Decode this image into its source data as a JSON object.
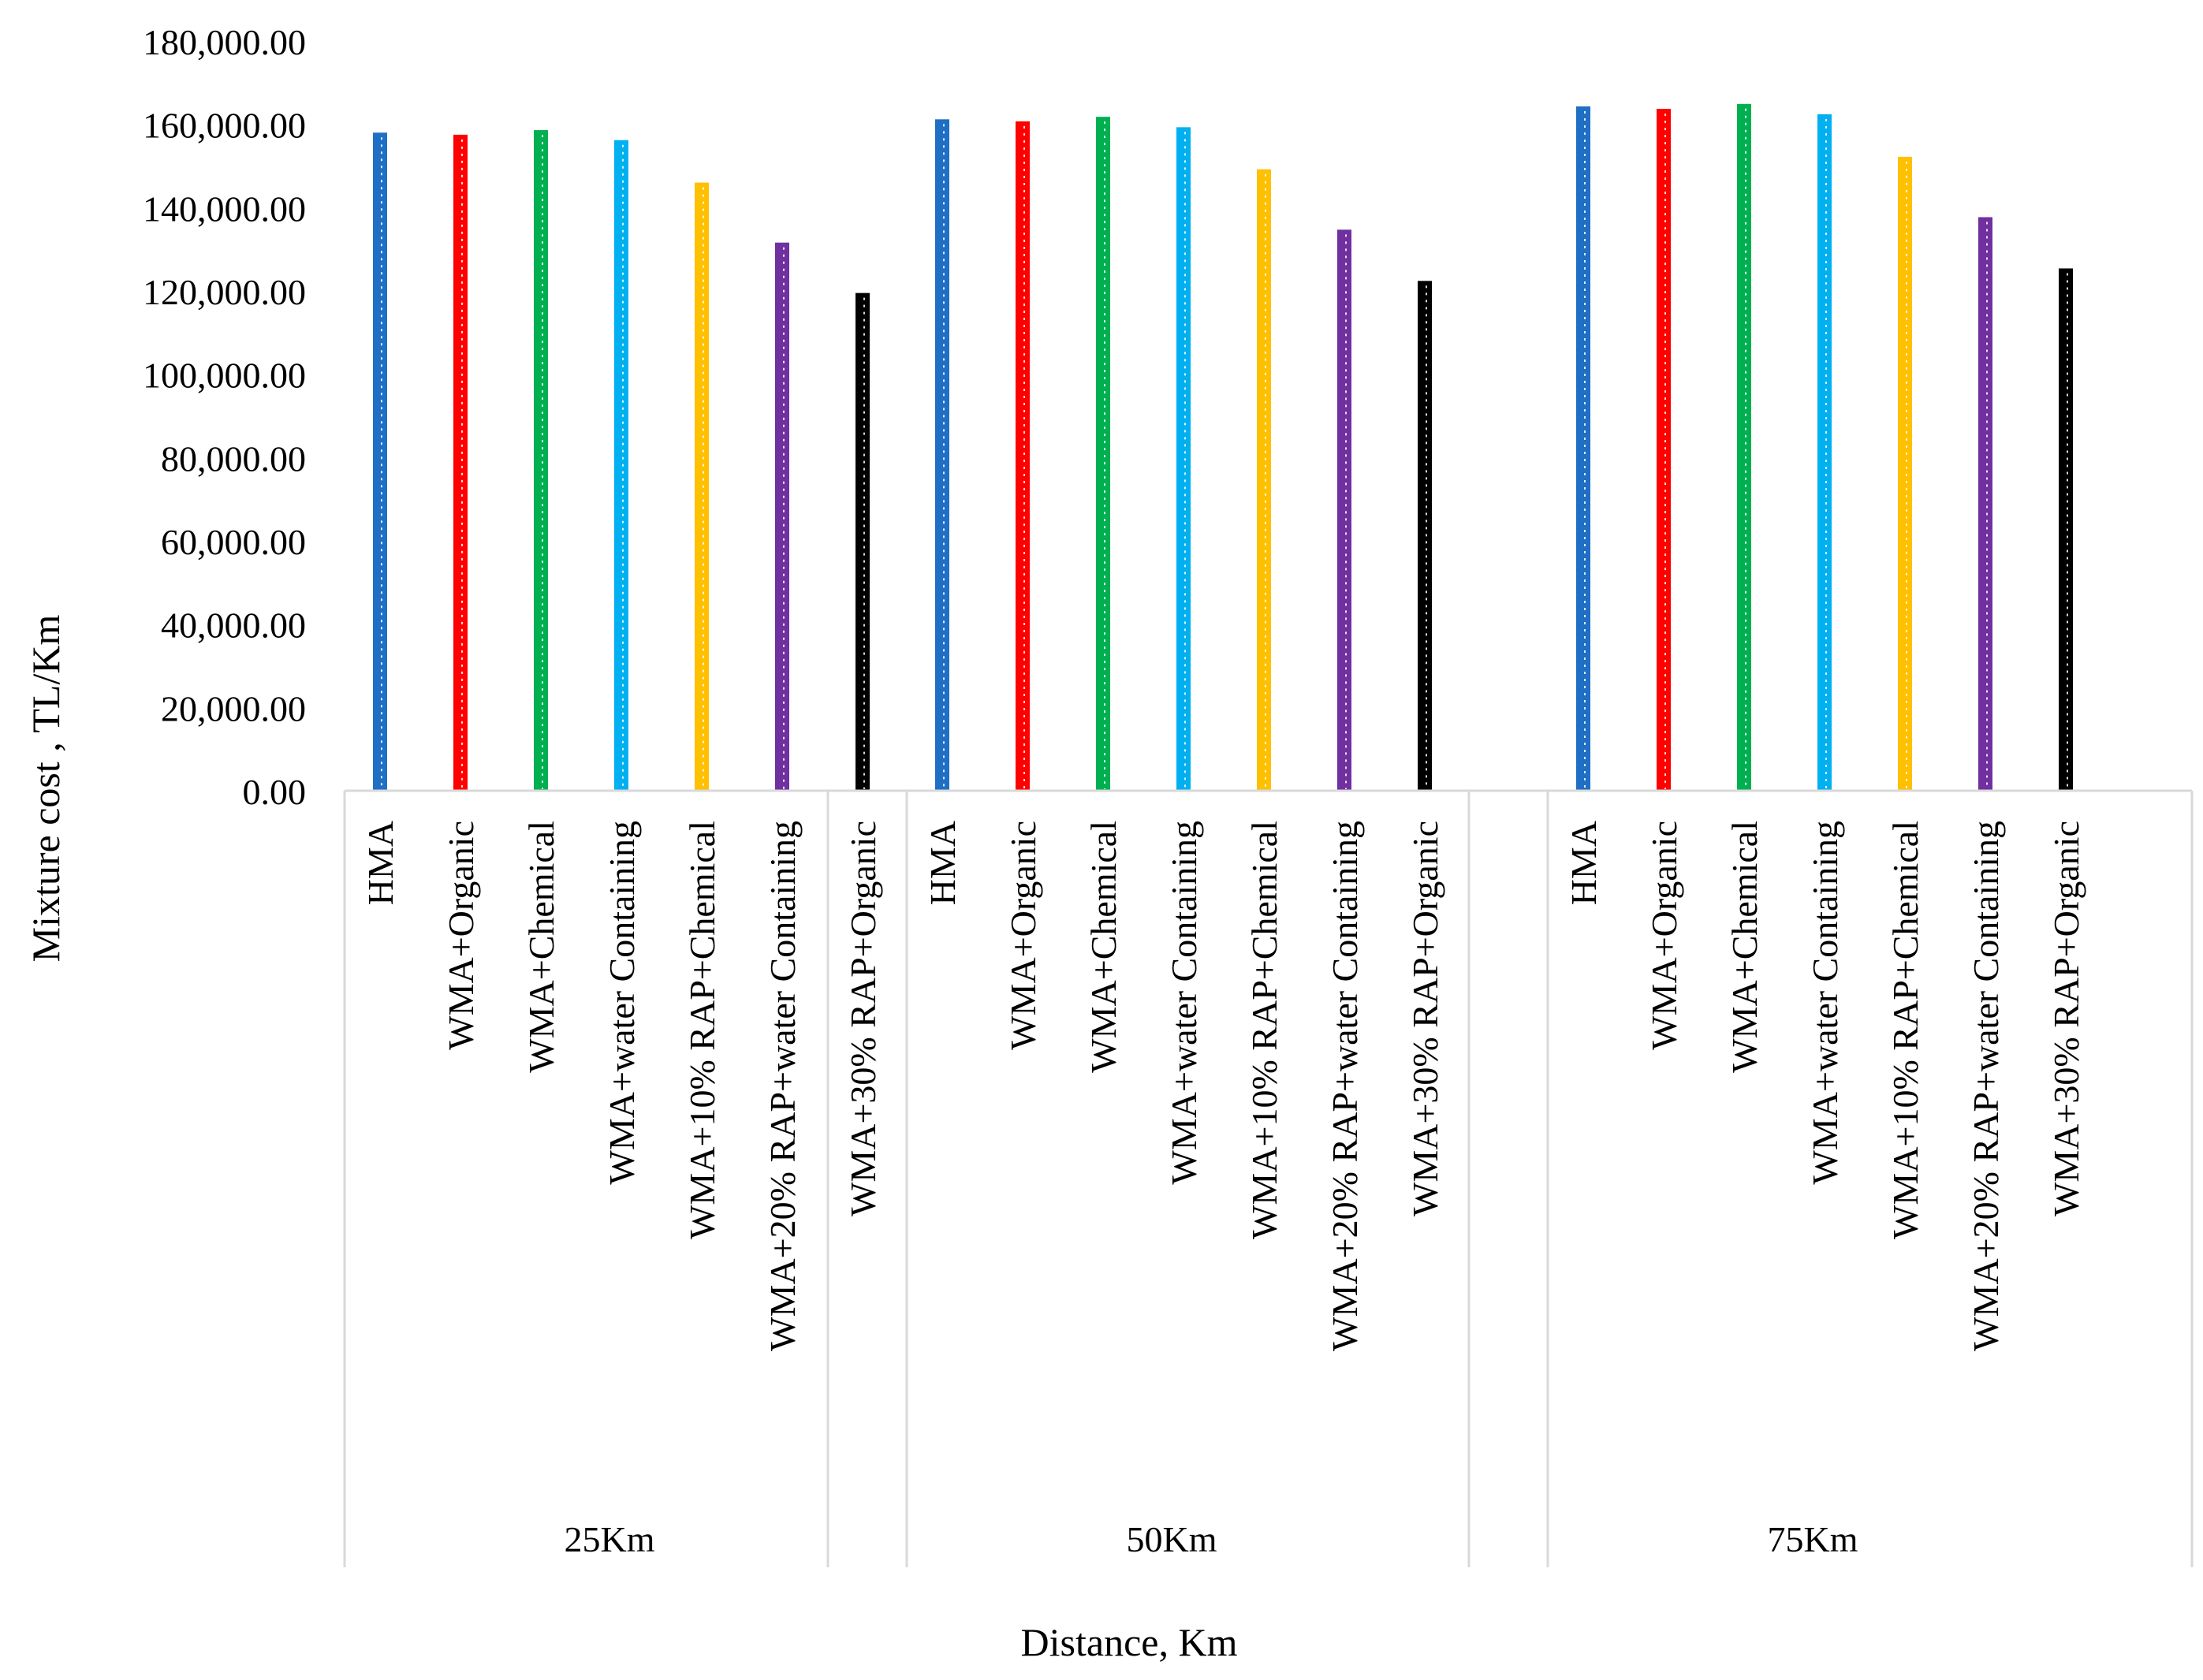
{
  "chart_data": {
    "type": "bar",
    "title": "",
    "xlabel": "Distance, Km",
    "ylabel": "Mixture cost , TL/Km",
    "ylim": [
      0,
      180000
    ],
    "ytick_step": 20000,
    "ytick_labels": [
      "0.00",
      "20,000.00",
      "40,000.00",
      "60,000.00",
      "80,000.00",
      "100,000.00",
      "120,000.00",
      "140,000.00",
      "160,000.00",
      "180,000.00"
    ],
    "grid": false,
    "legend": "none",
    "groups": [
      "25Km",
      "50Km",
      "75Km"
    ],
    "categories": [
      "HMA",
      "WMA+Organic",
      "WMA+Chemical",
      "WMA+water Containing",
      "WMA+10% RAP+Chemical",
      "WMA+20% RAP+water Containing",
      "WMA+30% RAP+Organic"
    ],
    "colors": [
      "#1f6fc4",
      "#ff0000",
      "#00b050",
      "#00b0f0",
      "#ffc000",
      "#7030a0",
      "#000000"
    ],
    "values": [
      [
        158000,
        157500,
        158600,
        156200,
        146000,
        131600,
        119500
      ],
      [
        161200,
        160700,
        161800,
        159300,
        149200,
        134700,
        122400
      ],
      [
        164300,
        163700,
        164900,
        162400,
        152200,
        137700,
        125400
      ]
    ]
  }
}
